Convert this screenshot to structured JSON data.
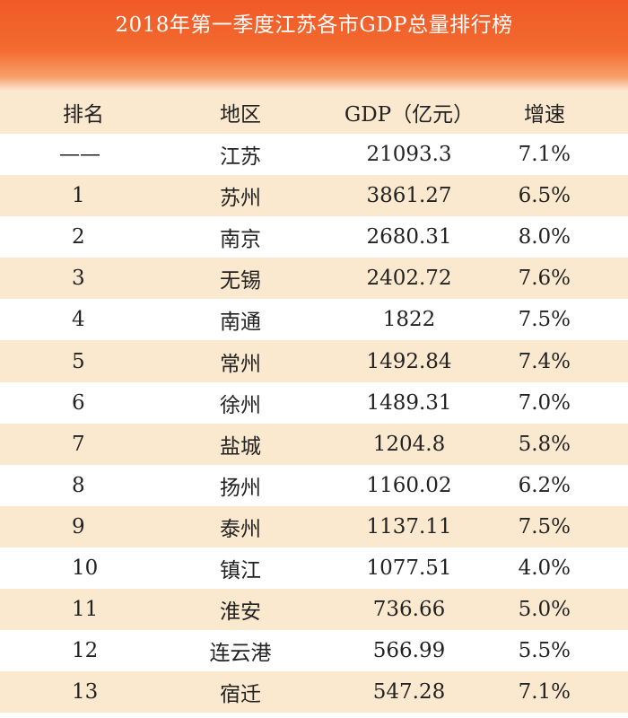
{
  "chart_data": {
    "type": "table",
    "title": "2018年第一季度江苏各市GDP总量排行榜",
    "columns": [
      "排名",
      "地区",
      "GDP（亿元）",
      "增速"
    ],
    "rows": [
      {
        "rank": "——",
        "region": "江苏",
        "gdp": "21093.3",
        "growth": "7.1%"
      },
      {
        "rank": "1",
        "region": "苏州",
        "gdp": "3861.27",
        "growth": "6.5%"
      },
      {
        "rank": "2",
        "region": "南京",
        "gdp": "2680.31",
        "growth": "8.0%"
      },
      {
        "rank": "3",
        "region": "无锡",
        "gdp": "2402.72",
        "growth": "7.6%"
      },
      {
        "rank": "4",
        "region": "南通",
        "gdp": "1822",
        "growth": "7.5%"
      },
      {
        "rank": "5",
        "region": "常州",
        "gdp": "1492.84",
        "growth": "7.4%"
      },
      {
        "rank": "6",
        "region": "徐州",
        "gdp": "1489.31",
        "growth": "7.0%"
      },
      {
        "rank": "7",
        "region": "盐城",
        "gdp": "1204.8",
        "growth": "5.8%"
      },
      {
        "rank": "8",
        "region": "扬州",
        "gdp": "1160.02",
        "growth": "6.2%"
      },
      {
        "rank": "9",
        "region": "泰州",
        "gdp": "1137.11",
        "growth": "7.5%"
      },
      {
        "rank": "10",
        "region": "镇江",
        "gdp": "1077.51",
        "growth": "4.0%"
      },
      {
        "rank": "11",
        "region": "淮安",
        "gdp": "736.66",
        "growth": "5.0%"
      },
      {
        "rank": "12",
        "region": "连云港",
        "gdp": "566.99",
        "growth": "5.5%"
      },
      {
        "rank": "13",
        "region": "宿迁",
        "gdp": "547.28",
        "growth": "7.1%"
      }
    ]
  }
}
